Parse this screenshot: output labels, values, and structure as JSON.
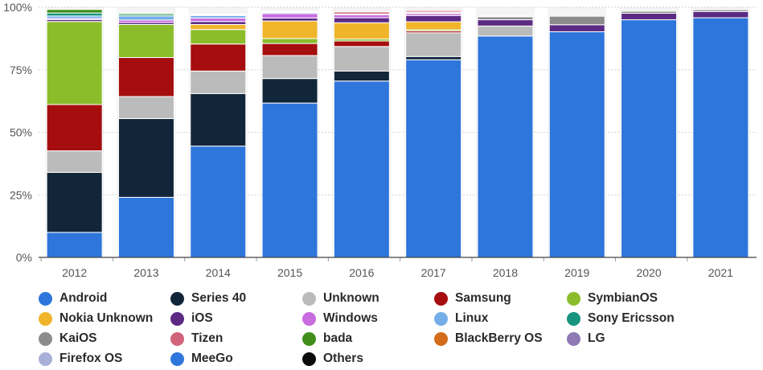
{
  "chart_data": {
    "type": "bar",
    "stacked": true,
    "title": "",
    "xlabel": "",
    "ylabel": "",
    "ylim": [
      0,
      100
    ],
    "ytick_labels": [
      "0%",
      "25%",
      "50%",
      "75%",
      "100%"
    ],
    "grid": true,
    "legend_position": "bottom",
    "categories": [
      "2012",
      "2013",
      "2014",
      "2015",
      "2016",
      "2017",
      "2018",
      "2019",
      "2020",
      "2021"
    ],
    "series": [
      {
        "name": "Android",
        "color": "#2f76dc",
        "values": [
          10,
          24,
          44.5,
          61.7,
          70.5,
          79,
          88.5,
          90.2,
          95,
          95.8
        ]
      },
      {
        "name": "Series 40",
        "color": "#12263a",
        "values": [
          24,
          31.5,
          21,
          9.8,
          4,
          1.3,
          0,
          0,
          0,
          0
        ]
      },
      {
        "name": "Unknown",
        "color": "#bbbbbb",
        "values": [
          8.6,
          8.8,
          9,
          9.2,
          9.8,
          9.5,
          4,
          0,
          0,
          0
        ]
      },
      {
        "name": "Samsung",
        "color": "#a50d0e",
        "values": [
          18.5,
          15.6,
          10.8,
          4.8,
          2.2,
          0.7,
          0,
          0,
          0,
          0
        ]
      },
      {
        "name": "SymbianOS",
        "color": "#8bbd2b",
        "values": [
          33.2,
          13.2,
          5.8,
          2,
          0.8,
          0.5,
          0,
          0,
          0,
          0
        ]
      },
      {
        "name": "Nokia Unknown",
        "color": "#f0b52a",
        "values": [
          0,
          0,
          2,
          7,
          6.5,
          3.2,
          0,
          0,
          0,
          0
        ]
      },
      {
        "name": "iOS",
        "color": "#5b2a83",
        "values": [
          0.8,
          0.8,
          1.2,
          1.2,
          2,
          2.5,
          2.5,
          2.8,
          2.6,
          2.5
        ]
      },
      {
        "name": "Windows",
        "color": "#c86ce0",
        "values": [
          0.4,
          1,
          1.4,
          1.8,
          1.2,
          0.8,
          0,
          0,
          0,
          0
        ]
      },
      {
        "name": "Linux",
        "color": "#74aee8",
        "values": [
          1,
          1.6,
          1,
          0.4,
          0.3,
          0.2,
          0,
          0,
          0,
          0
        ]
      },
      {
        "name": "Sony Ericsson",
        "color": "#17937e",
        "values": [
          1.2,
          0.6,
          0.3,
          0.2,
          0,
          0,
          0,
          0,
          0,
          0
        ]
      },
      {
        "name": "KaiOS",
        "color": "#8c8c8c",
        "values": [
          0,
          0,
          0,
          0,
          0,
          0.4,
          1.2,
          3.4,
          0.8,
          0.7
        ]
      },
      {
        "name": "Tizen",
        "color": "#d0637a",
        "values": [
          0,
          0,
          0,
          0.3,
          0.8,
          0.6,
          0.3,
          0,
          0,
          0
        ]
      },
      {
        "name": "bada",
        "color": "#3f8f1a",
        "values": [
          1.4,
          0.5,
          0.2,
          0,
          0,
          0,
          0,
          0,
          0,
          0
        ]
      },
      {
        "name": "BlackBerry OS",
        "color": "#d46d1b",
        "values": [
          0,
          0,
          0,
          0,
          0,
          0,
          0,
          0,
          0,
          0
        ]
      },
      {
        "name": "LG",
        "color": "#8e79b4",
        "values": [
          0,
          0,
          0,
          0,
          0,
          0,
          0,
          0,
          0,
          0
        ]
      },
      {
        "name": "Firefox OS",
        "color": "#a9b0d8",
        "values": [
          0,
          0,
          0,
          0,
          0,
          0,
          0,
          0,
          0,
          0
        ]
      },
      {
        "name": "MeeGo",
        "color": "#2f76dc",
        "values": [
          0,
          0,
          0,
          0,
          0,
          0,
          0,
          0,
          0,
          0
        ]
      },
      {
        "name": "Others",
        "color": "#0a0a0a",
        "values": [
          0,
          0,
          0,
          0,
          0,
          0,
          0,
          0,
          0,
          0
        ]
      }
    ],
    "style": {
      "grid_color": "#d4d4d4",
      "axis_label_color": "#555555",
      "axis_line_color": "#444444",
      "column_background": "#f4f4f4"
    }
  }
}
